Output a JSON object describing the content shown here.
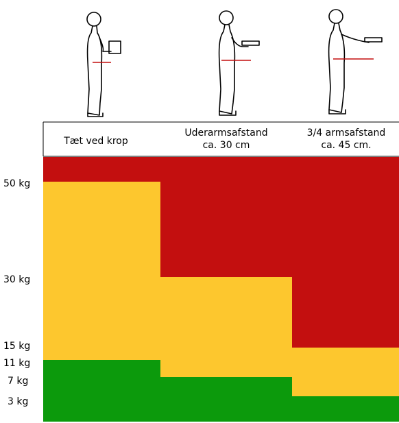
{
  "columns": [
    {
      "lines": [
        "Tæt ved krop"
      ]
    },
    {
      "lines": [
        "Uderarmsafstand",
        "ca. 30 cm"
      ]
    },
    {
      "lines": [
        "3/4 armsafstand",
        "ca. 45 cm."
      ]
    }
  ],
  "axis_labels": [
    "50 kg",
    "30 kg",
    "15 kg",
    "11 kg",
    "7 kg",
    "3 kg"
  ]
}
